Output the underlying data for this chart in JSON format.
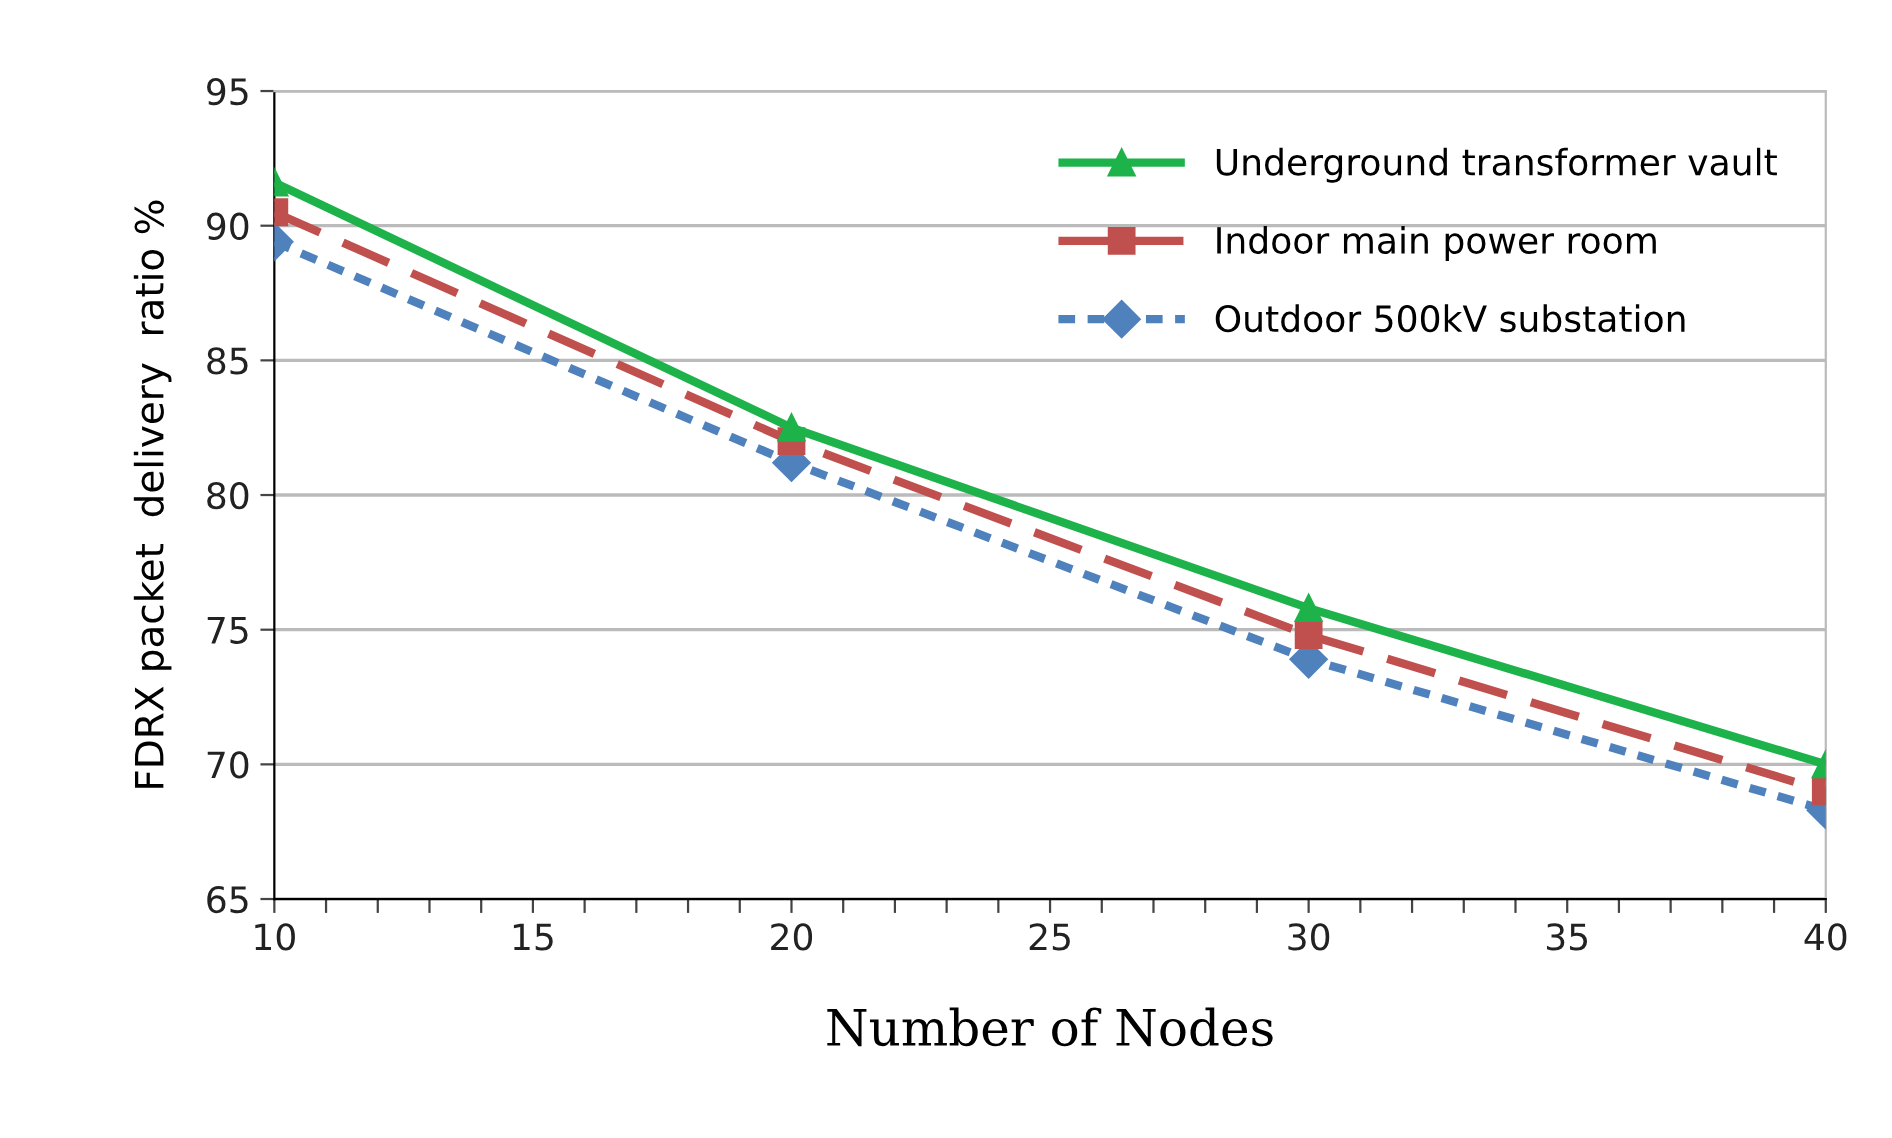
{
  "chart_data": {
    "type": "line",
    "xlabel": "Number of Nodes",
    "ylabel": "FDRX packet  delivery  ratio %",
    "x": [
      10,
      20,
      30,
      40
    ],
    "series": [
      {
        "name": "Underground transformer vault",
        "color": "#1db34a",
        "values": [
          91.6,
          82.5,
          75.8,
          70.0
        ],
        "marker": "triangle",
        "line_style": "solid"
      },
      {
        "name": "Indoor main power room",
        "color": "#c0504d",
        "values": [
          90.5,
          82.0,
          74.8,
          69.0
        ],
        "marker": "square",
        "line_style": "dashed"
      },
      {
        "name": "Outdoor 500kV substation",
        "color": "#4f81bd",
        "values": [
          89.4,
          81.2,
          73.9,
          68.3
        ],
        "marker": "diamond",
        "line_style": "dotted"
      }
    ],
    "xlim": [
      10,
      40
    ],
    "ylim": [
      65,
      95
    ],
    "xticks": [
      10,
      {
        "value": 11,
        "label": null
      },
      {
        "value": 12,
        "label": null
      },
      {
        "value": 13,
        "label": null
      },
      {
        "value": 14,
        "label": null
      },
      15,
      {
        "value": 16,
        "label": null
      },
      {
        "value": 17,
        "label": null
      },
      {
        "value": 18,
        "label": null
      },
      {
        "value": 19,
        "label": null
      },
      20,
      {
        "value": 21,
        "label": null
      },
      {
        "value": 22,
        "label": null
      },
      {
        "value": 23,
        "label": null
      },
      {
        "value": 24,
        "label": null
      },
      25,
      {
        "value": 26,
        "label": null
      },
      {
        "value": 27,
        "label": null
      },
      {
        "value": 28,
        "label": null
      },
      {
        "value": 29,
        "label": null
      },
      30,
      {
        "value": 31,
        "label": null
      },
      {
        "value": 32,
        "label": null
      },
      {
        "value": 33,
        "label": null
      },
      {
        "value": 34,
        "label": null
      },
      35,
      {
        "value": 36,
        "label": null
      },
      {
        "value": 37,
        "label": null
      },
      {
        "value": 38,
        "label": null
      },
      {
        "value": 39,
        "label": null
      },
      40
    ],
    "yticks": [
      65,
      70,
      75,
      80,
      85,
      90,
      95
    ],
    "grid": "y",
    "legend": "top right"
  }
}
